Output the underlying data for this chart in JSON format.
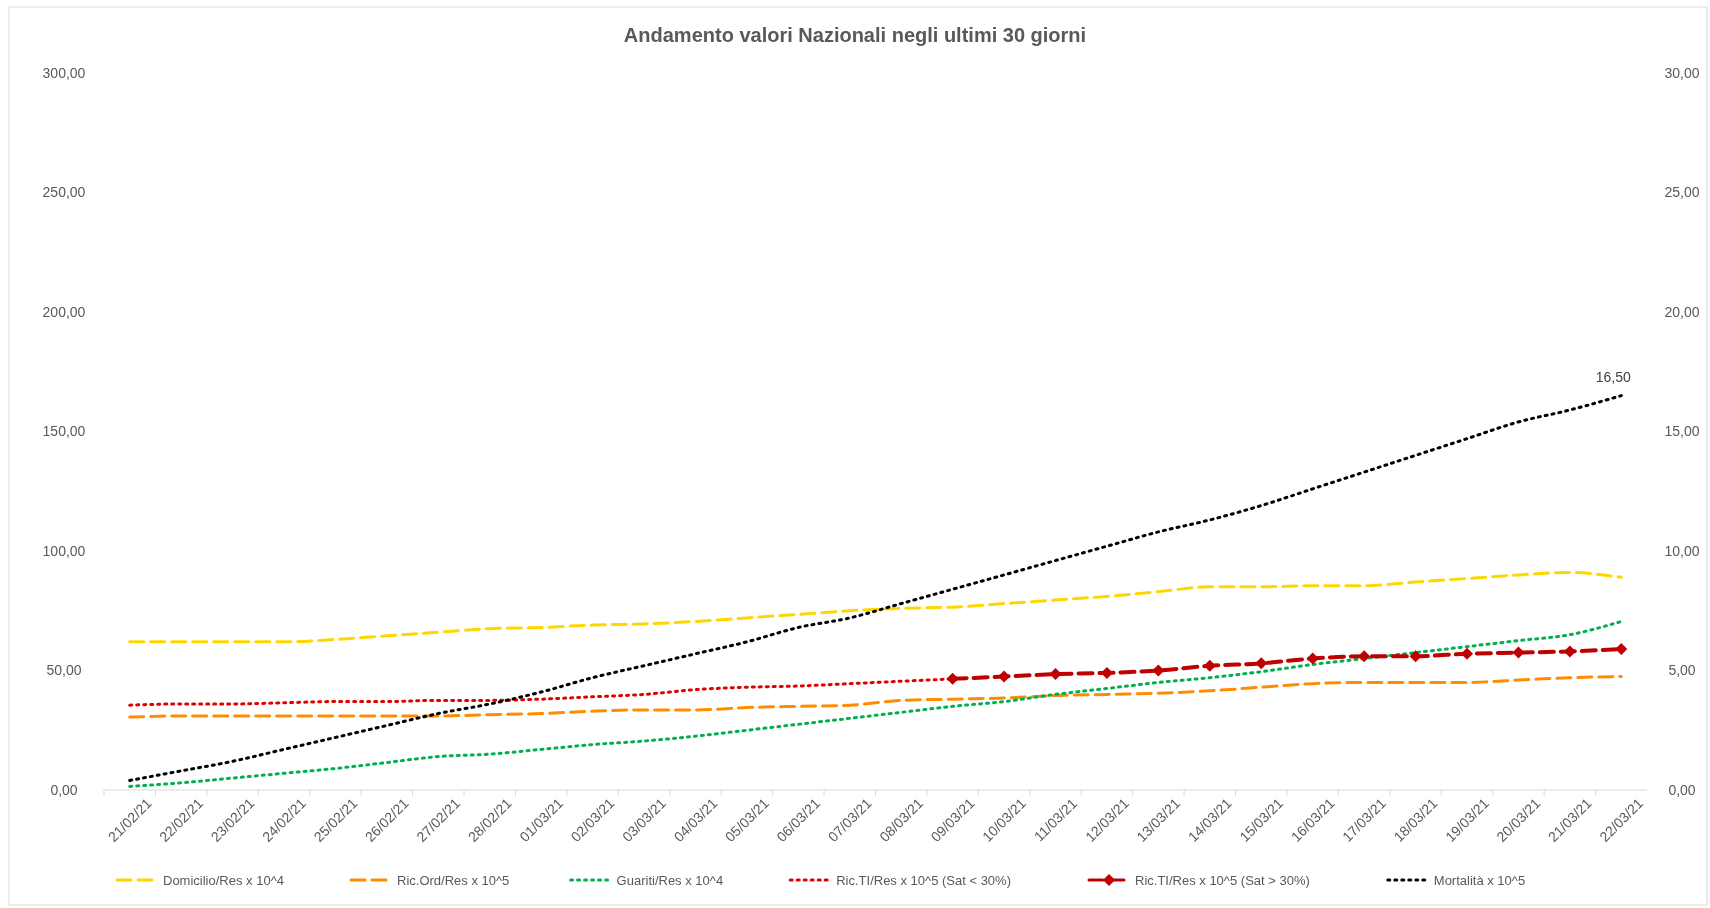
{
  "chart_data": {
    "type": "line",
    "title": "Andamento valori Nazionali negli ultimi 30 giorni",
    "categories": [
      "21/02/21",
      "22/02/21",
      "23/02/21",
      "24/02/21",
      "25/02/21",
      "26/02/21",
      "27/02/21",
      "28/02/21",
      "01/03/21",
      "02/03/21",
      "03/03/21",
      "04/03/21",
      "05/03/21",
      "06/03/21",
      "07/03/21",
      "08/03/21",
      "09/03/21",
      "10/03/21",
      "11/03/21",
      "12/03/21",
      "13/03/21",
      "14/03/21",
      "15/03/21",
      "16/03/21",
      "17/03/21",
      "18/03/21",
      "19/03/21",
      "20/03/21",
      "21/03/21",
      "22/03/21"
    ],
    "ylim": [
      0,
      300
    ],
    "yticks": [
      {
        "value": 0,
        "label": "0,00"
      },
      {
        "value": 50,
        "label": "50,00"
      },
      {
        "value": 100,
        "label": "100,00"
      },
      {
        "value": 150,
        "label": "150,00"
      },
      {
        "value": 200,
        "label": "200,00"
      },
      {
        "value": 250,
        "label": "250,00"
      },
      {
        "value": 300,
        "label": "300,00"
      }
    ],
    "y2lim": [
      0,
      30
    ],
    "y2ticks": [
      {
        "value": 0,
        "label": "0,00"
      },
      {
        "value": 5,
        "label": "5,00"
      },
      {
        "value": 10,
        "label": "10,00"
      },
      {
        "value": 15,
        "label": "15,00"
      },
      {
        "value": 20,
        "label": "20,00"
      },
      {
        "value": 25,
        "label": "25,00"
      },
      {
        "value": 30,
        "label": "30,00"
      }
    ],
    "grid": false,
    "legend": "bottom",
    "series": [
      {
        "name": "Domicilio/Res x 10^4",
        "color": "#ffd700",
        "line_style": "dashed",
        "marker": "none",
        "values": [
          62,
          62,
          62,
          62,
          63,
          64.5,
          66,
          67.5,
          68,
          69,
          69.5,
          70.5,
          72,
          73.5,
          75,
          76,
          76.5,
          78,
          79.5,
          81,
          83,
          85,
          85,
          85.5,
          85.5,
          87,
          88.5,
          90,
          91,
          89
        ]
      },
      {
        "name": "Ric.Ord/Res x 10^5",
        "color": "#ff8c00",
        "line_style": "dashed",
        "marker": "none",
        "values": [
          30.5,
          31,
          31,
          31,
          31,
          31,
          31,
          31.5,
          32,
          33,
          33.5,
          33.5,
          34.5,
          35,
          35.5,
          37.5,
          38,
          38.5,
          39.5,
          40,
          40.5,
          41.5,
          43,
          44.5,
          45,
          45,
          45,
          46,
          47,
          47.5
        ]
      },
      {
        "name": "Guariti/Res x 10^4",
        "color": "#00b050",
        "line_style": "dotted",
        "marker": "none",
        "values": [
          1.5,
          3,
          5,
          7,
          9,
          11.5,
          14,
          15,
          17,
          19,
          20.5,
          22.5,
          25,
          27.5,
          30,
          32.5,
          35,
          37,
          40,
          42.5,
          45,
          47,
          49.5,
          52.5,
          55,
          57.5,
          60,
          62.5,
          65,
          70.5
        ]
      },
      {
        "name": "Ric.TI/Res x 10^5 (Sat < 30%)",
        "color": "#e00000",
        "line_style": "dotted",
        "marker": "none",
        "values": [
          35.5,
          36,
          36,
          36.5,
          37,
          37,
          37.5,
          37.5,
          38,
          39,
          40,
          42,
          43,
          43.5,
          44.5,
          45.5,
          46.5,
          null,
          null,
          null,
          null,
          null,
          null,
          null,
          null,
          null,
          null,
          null,
          null,
          null
        ]
      },
      {
        "name": "Ric.TI/Res x 10^5 (Sat > 30%)",
        "color": "#c00000",
        "line_style": "dashed",
        "marker": "diamond",
        "values": [
          null,
          null,
          null,
          null,
          null,
          null,
          null,
          null,
          null,
          null,
          null,
          null,
          null,
          null,
          null,
          null,
          46.5,
          47.5,
          48.5,
          49,
          50,
          52,
          53,
          55,
          56,
          56,
          57,
          57.5,
          58,
          59
        ]
      },
      {
        "name": "Mortalità x 10^5",
        "color": "#000000",
        "line_style": "dotted",
        "marker": "none",
        "axis": "y2",
        "values": [
          0.4,
          0.8,
          1.2,
          1.7,
          2.2,
          2.7,
          3.2,
          3.6,
          4.1,
          4.7,
          5.2,
          5.7,
          6.2,
          6.8,
          7.2,
          7.8,
          8.4,
          9.0,
          9.6,
          10.2,
          10.8,
          11.3,
          11.9,
          12.6,
          13.3,
          14.0,
          14.7,
          15.4,
          15.9,
          16.5
        ],
        "value_labels": [
          null,
          null,
          null,
          null,
          null,
          null,
          null,
          null,
          null,
          null,
          null,
          null,
          null,
          null,
          null,
          null,
          null,
          null,
          null,
          null,
          null,
          null,
          null,
          null,
          null,
          null,
          null,
          null,
          null,
          "16,50"
        ]
      }
    ]
  }
}
